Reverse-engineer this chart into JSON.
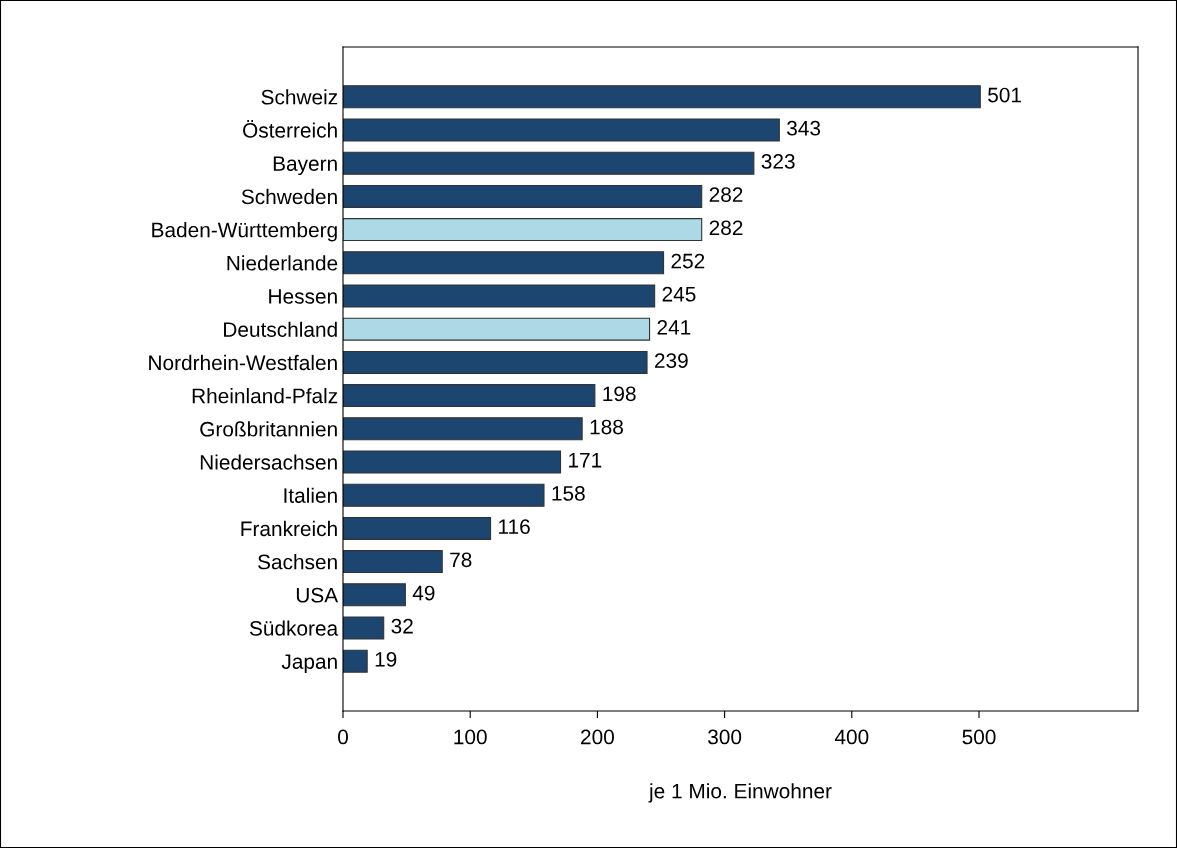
{
  "chart_data": {
    "type": "bar",
    "orientation": "horizontal",
    "xlabel": "je 1 Mio. Einwohner",
    "categories": [
      "Schweiz",
      "Österreich",
      "Bayern",
      "Schweden",
      "Baden-Württemberg",
      "Niederlande",
      "Hessen",
      "Deutschland",
      "Nordrhein-Westfalen",
      "Rheinland-Pfalz",
      "Großbritannien",
      "Niedersachsen",
      "Italien",
      "Frankreich",
      "Sachsen",
      "USA",
      "Südkorea",
      "Japan"
    ],
    "values": [
      501,
      343,
      323,
      282,
      282,
      252,
      245,
      241,
      239,
      198,
      188,
      171,
      158,
      116,
      78,
      49,
      32,
      19
    ],
    "colors": [
      "#1c4670",
      "#1c4670",
      "#1c4670",
      "#1c4670",
      "#add8e6",
      "#1c4670",
      "#1c4670",
      "#add8e6",
      "#1c4670",
      "#1c4670",
      "#1c4670",
      "#1c4670",
      "#1c4670",
      "#1c4670",
      "#1c4670",
      "#1c4670",
      "#1c4670",
      "#1c4670"
    ],
    "xlim": [
      0,
      625
    ],
    "xticks": [
      0,
      100,
      200,
      300,
      400,
      500
    ],
    "data_labels": true
  }
}
